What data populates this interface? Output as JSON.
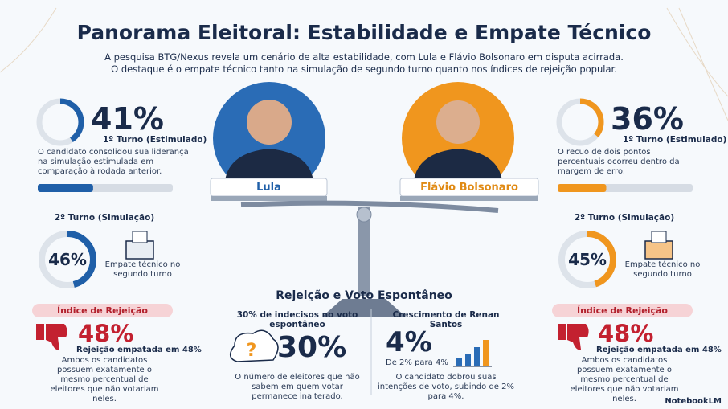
{
  "header": {
    "title": "Panorama Eleitoral: Estabilidade e Empate Técnico",
    "subtitle": [
      "A pesquisa BTG/Nexus revela um cenário de alta estabilidade, com Lula e Flávio Bolsonaro em disputa acirrada.",
      "O destaque é o empate técnico tanto na simulação de segundo turno quanto nos índices de rejeição popular."
    ]
  },
  "candidates": [
    {
      "name": "Lula",
      "first_round": {
        "value": 41,
        "label": "41%",
        "caption": "1º Turno (Estimulado)",
        "note": "O candidato consolidou sua liderança na simulação estimulada em comparação à rodada anterior."
      },
      "second_round": {
        "heading": "2º Turno (Simulação)",
        "value": 46,
        "label": "46%",
        "note": "Empate técnico no segundo turno"
      },
      "rejection": {
        "heading": "Índice de Rejeição",
        "value": 48,
        "label": "48%",
        "caption": "Rejeição empatada em 48%",
        "note": "Ambos os candidatos possuem exatamente o mesmo percentual de eleitores que não votariam neles."
      }
    },
    {
      "name": "Flávio Bolsonaro",
      "first_round": {
        "value": 36,
        "label": "36%",
        "caption": "1º Turno (Estimulado)",
        "note": "O recuo de dois pontos percentuais ocorreu dentro da margem de erro."
      },
      "second_round": {
        "heading": "2º Turno (Simulação)",
        "value": 45,
        "label": "45%",
        "note": "Empate técnico no segundo turno"
      },
      "rejection": {
        "heading": "Índice de Rejeição",
        "value": 48,
        "label": "48%",
        "caption": "Rejeição empatada em 48%",
        "note": "Ambos os candidatos possuem exatamente o mesmo percentual de eleitores que não votariam neles."
      }
    }
  ],
  "center": {
    "heading": "Rejeição e Voto Espontâneo",
    "undecided": {
      "title": "30% de indecisos no voto espontâneo",
      "label": "30%",
      "note": "O número de eleitores que não sabem em quem votar permanece inalterado."
    },
    "renan": {
      "title": "Crescimento de Renan Santos",
      "label": "4%",
      "sub": "De 2% para 4%",
      "note": "O candidato dobrou suas intenções de voto, subindo de 2% para 4%."
    }
  },
  "footer": "NotebookLM"
}
